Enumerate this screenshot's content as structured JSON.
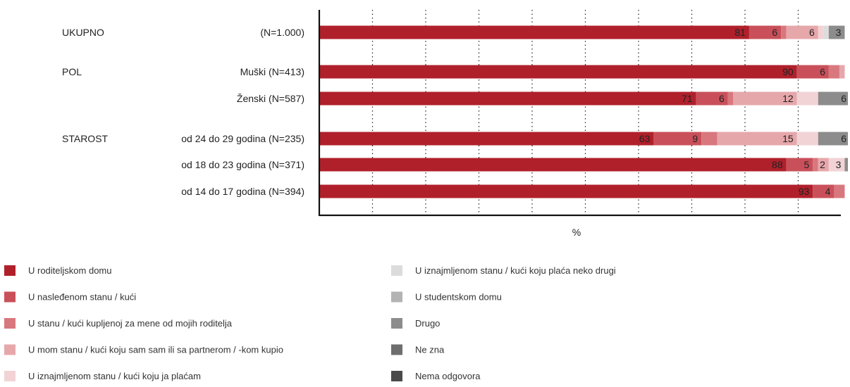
{
  "chart_data": {
    "type": "bar",
    "orientation": "horizontal",
    "stacked": true,
    "xlabel": "%",
    "xlim": [
      0,
      100
    ],
    "grid": true,
    "legend_position": "bottom",
    "groups": [
      {
        "label": "UKUPNO",
        "rows": [
          0
        ]
      },
      {
        "label": "POL",
        "rows": [
          1,
          2
        ]
      },
      {
        "label": "STAROST",
        "rows": [
          3,
          4,
          5
        ]
      }
    ],
    "categories": [
      "(N=1.000)",
      "Muški (N=413)",
      "Ženski (N=587)",
      "od 24 do 29 godina (N=235)",
      "od 18 do 23 godina (N=371)",
      "od 14 do 17 godina (N=394)"
    ],
    "series": [
      {
        "name": "U roditeljskom domu",
        "color": "#b0202b",
        "values": [
          81,
          90,
          71,
          63,
          88,
          93
        ]
      },
      {
        "name": "U nasleđenom stanu / kući",
        "color": "#c9505a",
        "values": [
          6,
          6,
          6,
          9,
          5,
          4
        ]
      },
      {
        "name": "U stanu / kući kupljenoj za mene od mojih roditelja",
        "color": "#d9777e",
        "values": [
          1,
          2,
          1,
          3,
          1,
          2
        ]
      },
      {
        "name": "U mom stanu / kući koju sam sam ili sa partnerom / -kom kupio",
        "color": "#e6a7ab",
        "values": [
          6,
          1,
          12,
          15,
          2,
          0
        ]
      },
      {
        "name": "U iznajmljenom stanu / kući koju ja plaćam",
        "color": "#f2d3d5",
        "values": [
          1,
          0,
          4,
          4,
          3,
          0
        ]
      },
      {
        "name": "U iznajmljenom stanu / kući koju plaća neko drugi",
        "color": "#dcdcdc",
        "values": [
          1,
          0,
          0,
          0,
          0,
          0
        ]
      },
      {
        "name": "U studentskom domu",
        "color": "#b3b3b3",
        "values": [
          0,
          0,
          0,
          0,
          0,
          0
        ]
      },
      {
        "name": "Drugo",
        "color": "#8c8c8c",
        "values": [
          3,
          0,
          6,
          6,
          1,
          0
        ]
      },
      {
        "name": "Ne zna",
        "color": "#6e6e6e",
        "values": [
          0,
          0,
          0,
          0,
          0,
          0
        ]
      },
      {
        "name": "Nema odgovora",
        "color": "#4a4a4a",
        "values": [
          0,
          0,
          0,
          0,
          0,
          0
        ]
      }
    ],
    "data_labels": [
      [
        81,
        6,
        null,
        6,
        null,
        null,
        null,
        3,
        null,
        null
      ],
      [
        90,
        6,
        null,
        null,
        null,
        null,
        null,
        null,
        null,
        null
      ],
      [
        71,
        6,
        null,
        12,
        null,
        null,
        null,
        6,
        null,
        null
      ],
      [
        63,
        9,
        null,
        15,
        null,
        null,
        null,
        6,
        null,
        null
      ],
      [
        88,
        5,
        null,
        2,
        3,
        null,
        null,
        null,
        null,
        null
      ],
      [
        93,
        4,
        null,
        null,
        null,
        null,
        null,
        null,
        null,
        null
      ]
    ]
  }
}
